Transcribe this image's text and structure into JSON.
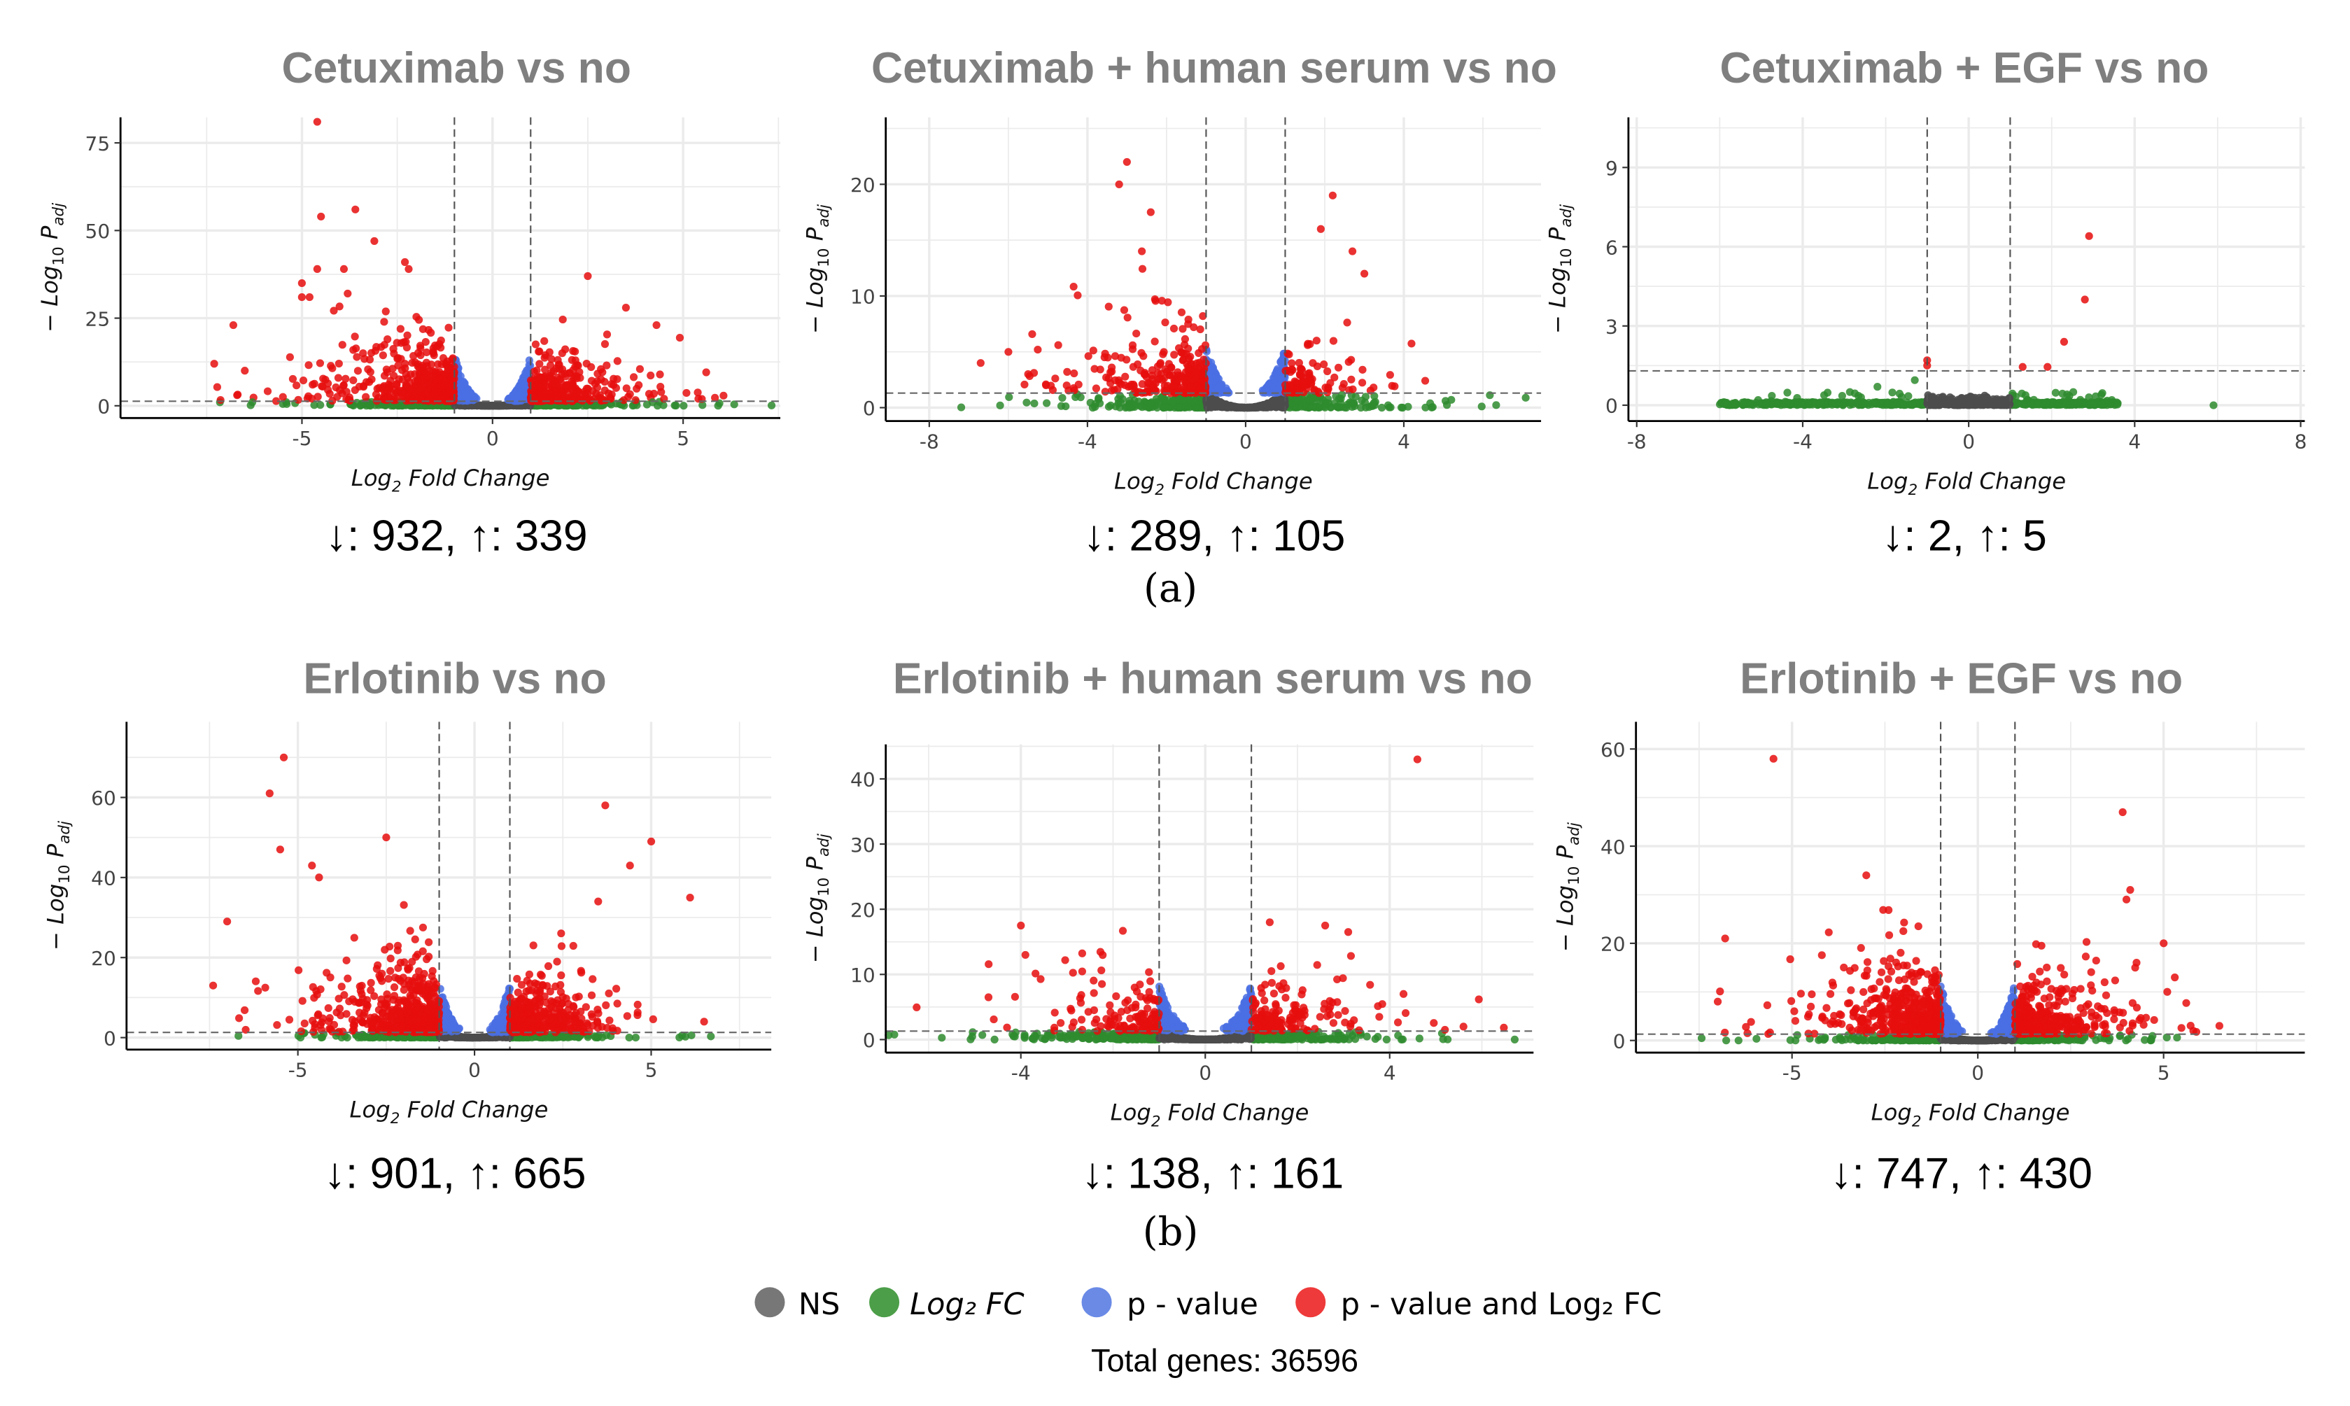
{
  "chart_data": [
    {
      "type": "scatter",
      "title": "Cetuximab vs no",
      "xlabel": "Log2 Fold Change",
      "ylabel": "-Log10 P adj",
      "xlim": [
        -9.76,
        7.55
      ],
      "ylim": [
        -3.5,
        82.3
      ],
      "xticks": [
        -5,
        0,
        5
      ],
      "yticks": [
        0,
        25,
        50,
        75
      ],
      "fc_cutoff": 1,
      "p_cutoff_log": 1.3,
      "down": 932,
      "up": 339,
      "count_label": "↓: 932, ↑: 339",
      "outliers": [
        [
          -4.6,
          81
        ],
        [
          -3.6,
          56
        ],
        [
          -4.5,
          54
        ],
        [
          -3.1,
          47
        ],
        [
          -2.3,
          41
        ],
        [
          -2.2,
          39
        ],
        [
          -4.6,
          39
        ],
        [
          -3.9,
          39
        ],
        [
          -5,
          35
        ],
        [
          -5,
          31
        ],
        [
          -4.8,
          31
        ],
        [
          -3.8,
          32
        ],
        [
          -7.3,
          12
        ],
        [
          -6.8,
          23
        ],
        [
          -6.5,
          10
        ],
        [
          -6.7,
          3
        ],
        [
          2.5,
          37
        ],
        [
          3.5,
          28
        ],
        [
          4.3,
          23
        ],
        [
          5.4,
          2
        ],
        [
          4.5,
          2
        ],
        [
          -6.3,
          1,
          "g"
        ],
        [
          -5.5,
          0.5,
          "g"
        ],
        [
          4.2,
          1,
          "g"
        ]
      ]
    },
    {
      "type": "scatter",
      "title": "Cetuximab + human serum vs no",
      "xlabel": "Log2 Fold Change",
      "ylabel": "-Log10 P adj",
      "xlim": [
        -9.1,
        7.47
      ],
      "ylim": [
        -1.2,
        26
      ],
      "xticks": [
        -8,
        -4,
        0,
        4
      ],
      "yticks": [
        0,
        10,
        20
      ],
      "fc_cutoff": 1,
      "p_cutoff_log": 1.3,
      "down": 289,
      "up": 105,
      "count_label": "↓: 289, ↑: 105",
      "outliers": [
        [
          -3,
          22
        ],
        [
          -3.2,
          20
        ],
        [
          -2.4,
          17.5
        ],
        [
          -6.7,
          4
        ],
        [
          -6,
          5
        ],
        [
          -5.5,
          3
        ],
        [
          2.2,
          19
        ],
        [
          2.7,
          14
        ],
        [
          1.9,
          16
        ],
        [
          3,
          12
        ],
        [
          5.2,
          0.7,
          "g"
        ]
      ]
    },
    {
      "type": "scatter",
      "title": "Cetuximab + EGF vs no",
      "xlabel": "Log2 Fold Change",
      "ylabel": "-Log10 P adj",
      "xlim": [
        -8.2,
        8.1
      ],
      "ylim": [
        -0.6,
        10.9
      ],
      "xticks": [
        -8,
        -4,
        0,
        4,
        8
      ],
      "yticks": [
        0,
        3,
        6,
        9
      ],
      "fc_cutoff": 1,
      "p_cutoff_log": 1.3,
      "down": 2,
      "up": 5,
      "count_label": "↓: 2, ↑: 5",
      "sparse": true,
      "outliers": [
        [
          -1,
          1.5
        ],
        [
          -1,
          1.7
        ],
        [
          1.3,
          1.45
        ],
        [
          1.9,
          1.45
        ],
        [
          2.3,
          2.4
        ],
        [
          2.8,
          4.0
        ],
        [
          2.9,
          6.4
        ],
        [
          5.9,
          0,
          "g"
        ],
        [
          -1.3,
          0.95,
          "g"
        ],
        [
          -2.2,
          0.7,
          "g"
        ]
      ]
    },
    {
      "type": "scatter",
      "title": "Erlotinib vs no",
      "xlabel": "Log2 Fold Change",
      "ylabel": "-Log10 P adj",
      "xlim": [
        -9.85,
        8.4
      ],
      "ylim": [
        -3,
        78.9
      ],
      "xticks": [
        -5,
        0,
        5
      ],
      "yticks": [
        0,
        20,
        40,
        60
      ],
      "fc_cutoff": 1,
      "p_cutoff_log": 1.3,
      "down": 901,
      "up": 665,
      "count_label": "↓: 901, ↑: 665",
      "outliers": [
        [
          -5.4,
          70
        ],
        [
          -5.8,
          61
        ],
        [
          -5.5,
          47
        ],
        [
          -7,
          29
        ],
        [
          -7.4,
          13
        ],
        [
          -2.5,
          50
        ],
        [
          -4.6,
          43
        ],
        [
          -4.4,
          40
        ],
        [
          3.7,
          58
        ],
        [
          5,
          49
        ],
        [
          4.4,
          43
        ],
        [
          6.1,
          35
        ],
        [
          3.5,
          34
        ],
        [
          6.5,
          4
        ]
      ]
    },
    {
      "type": "scatter",
      "title": "Erlotinib + human serum vs no",
      "xlabel": "Log2 Fold Change",
      "ylabel": "-Log10 P adj",
      "xlim": [
        -6.93,
        7.12
      ],
      "ylim": [
        -2,
        45.3
      ],
      "xticks": [
        -4,
        0,
        4
      ],
      "yticks": [
        0,
        10,
        20,
        30,
        40
      ],
      "fc_cutoff": 1,
      "p_cutoff_log": 1.3,
      "down": 138,
      "up": 161,
      "count_label": "↓: 138, ↑: 161",
      "outliers": [
        [
          4.6,
          43
        ],
        [
          -4,
          17.5
        ],
        [
          -3.9,
          13
        ],
        [
          1.4,
          18
        ],
        [
          2.6,
          17.5
        ],
        [
          3.1,
          16.5
        ],
        [
          -4.7,
          6.5
        ],
        [
          4.3,
          7
        ],
        [
          5.6,
          2
        ],
        [
          5.2,
          1.5
        ]
      ]
    },
    {
      "type": "scatter",
      "title": "Erlotinib + EGF vs no",
      "xlabel": "Log2 Fold Change",
      "ylabel": "-Log10 P adj",
      "xlim": [
        -9.2,
        8.8
      ],
      "ylim": [
        -2.5,
        65.6
      ],
      "xticks": [
        -5,
        0,
        5
      ],
      "yticks": [
        0,
        20,
        40,
        60
      ],
      "fc_cutoff": 1,
      "p_cutoff_log": 1.3,
      "down": 747,
      "up": 430,
      "count_label": "↓: 747, ↑: 430",
      "outliers": [
        [
          -5.5,
          58
        ],
        [
          -3,
          34
        ],
        [
          3.9,
          47
        ],
        [
          4.1,
          31
        ],
        [
          4,
          29
        ],
        [
          -6.8,
          21
        ],
        [
          -7,
          8
        ],
        [
          -6.2,
          1.5
        ],
        [
          5,
          20
        ],
        [
          5.1,
          10
        ],
        [
          6.5,
          3
        ],
        [
          5.8,
          2
        ]
      ]
    }
  ],
  "subfigure_labels": [
    "(a)",
    "(b)"
  ],
  "legend": {
    "items": [
      {
        "label": "NS",
        "color": "#777777"
      },
      {
        "label": "Log₂ FC",
        "color": "#4c9e48"
      },
      {
        "label": "p - value",
        "color": "#6a8ae6"
      },
      {
        "label": "p - value and Log₂ FC",
        "color": "#ee3a3a"
      }
    ]
  },
  "total_genes": "Total genes: 36596",
  "colors": {
    "ns": "#4d4d4d",
    "fc": "#2e8b2e",
    "p": "#4a6fe3",
    "both": "#e60e0e",
    "grid": "#ebebeb"
  }
}
